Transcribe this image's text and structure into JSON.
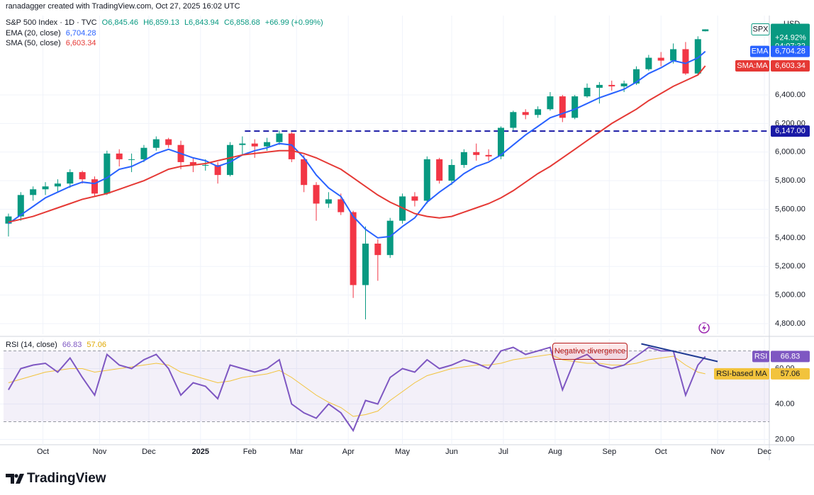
{
  "header": {
    "credit": "ranadagger created with TradingView.com, Oct 27, 2025 16:02 UTC"
  },
  "chart_data": [
    {
      "type": "candlestick",
      "title": "S&P 500 Index · 1D · TVC",
      "ohlc_labels": [
        "O6,845.46",
        "H6,859.13",
        "L6,843.94",
        "C6,858.68",
        "+66.99 (+0.99%)"
      ],
      "currency": "USD",
      "symbol": "SPX",
      "change_label": "+24.92%",
      "countdown": "04:07:32",
      "up_color": "#089981",
      "down_color": "#f23645",
      "x": [
        1,
        6,
        11,
        16,
        21,
        26,
        31,
        36,
        41,
        46,
        51,
        56,
        61,
        66,
        71,
        76,
        81,
        86,
        91,
        96,
        101,
        106,
        111,
        116,
        121,
        126,
        131,
        136,
        141,
        146,
        151,
        156,
        161,
        166,
        171,
        176,
        181,
        186,
        191,
        196,
        201,
        206,
        211,
        216,
        221,
        226,
        231,
        236,
        241,
        246,
        251,
        256,
        261,
        266,
        271,
        276,
        281,
        284
      ],
      "open": [
        5500,
        5550,
        5700,
        5740,
        5760,
        5780,
        5860,
        5810,
        5710,
        5990,
        5950,
        5950,
        6030,
        6090,
        6050,
        5930,
        5910,
        5910,
        5840,
        6050,
        6060,
        6040,
        6070,
        6130,
        5950,
        5770,
        5640,
        5670,
        5580,
        5070,
        5360,
        5280,
        5520,
        5690,
        5660,
        5950,
        5800,
        5910,
        6000,
        5980,
        5970,
        6170,
        6280,
        6260,
        6300,
        6390,
        6240,
        6390,
        6450,
        6470,
        6460,
        6480,
        6580,
        6660,
        6640,
        6720,
        6550,
        6845.46
      ],
      "high": [
        5570,
        5720,
        5760,
        5790,
        5810,
        5880,
        5870,
        5830,
        6010,
        6020,
        5990,
        6050,
        6110,
        6100,
        6080,
        5960,
        5950,
        5930,
        6070,
        6110,
        6090,
        6100,
        6150,
        6140,
        5980,
        5790,
        5720,
        5710,
        5590,
        5480,
        5390,
        5540,
        5710,
        5720,
        5970,
        5960,
        5950,
        6020,
        6060,
        6020,
        6180,
        6290,
        6300,
        6320,
        6420,
        6400,
        6400,
        6480,
        6490,
        6500,
        6500,
        6600,
        6680,
        6700,
        6760,
        6770,
        6810,
        6859.13
      ],
      "low": [
        5410,
        5520,
        5660,
        5700,
        5720,
        5750,
        5780,
        5690,
        5700,
        5900,
        5860,
        5930,
        6010,
        6030,
        5880,
        5860,
        5870,
        5780,
        5830,
        5980,
        5960,
        6010,
        6050,
        5930,
        5720,
        5520,
        5610,
        5560,
        4980,
        4830,
        5100,
        5260,
        5500,
        5620,
        5640,
        5780,
        5770,
        5890,
        5940,
        5940,
        5950,
        6150,
        6230,
        6240,
        6290,
        6210,
        6230,
        6380,
        6340,
        6430,
        6420,
        6470,
        6570,
        6600,
        6620,
        6540,
        6540,
        6843.94
      ],
      "close": [
        5550,
        5700,
        5740,
        5760,
        5780,
        5860,
        5810,
        5710,
        5990,
        5950,
        5950,
        6030,
        6090,
        6050,
        5930,
        5910,
        5910,
        5840,
        6050,
        6060,
        6040,
        6070,
        6130,
        5950,
        5770,
        5640,
        5670,
        5580,
        5070,
        5360,
        5280,
        5520,
        5690,
        5660,
        5950,
        5800,
        5910,
        6000,
        5980,
        5970,
        6170,
        6280,
        6260,
        6300,
        6390,
        6240,
        6390,
        6450,
        6470,
        6460,
        6480,
        6580,
        6660,
        6640,
        6720,
        6550,
        6790,
        6858.68
      ],
      "series": [
        {
          "name": "EMA (20, close)",
          "badge": "EMA",
          "legend_value": "6,704.28",
          "color": "#2962ff",
          "values": [
            5500,
            5560,
            5620,
            5680,
            5720,
            5760,
            5790,
            5780,
            5820,
            5880,
            5900,
            5940,
            5990,
            6020,
            5990,
            5960,
            5940,
            5900,
            5930,
            5980,
            6010,
            6030,
            6060,
            6050,
            5960,
            5840,
            5750,
            5690,
            5550,
            5460,
            5400,
            5410,
            5480,
            5540,
            5650,
            5720,
            5780,
            5850,
            5900,
            5930,
            5980,
            6050,
            6120,
            6180,
            6240,
            6270,
            6300,
            6340,
            6380,
            6410,
            6440,
            6490,
            6550,
            6590,
            6640,
            6620,
            6660,
            6704.28
          ]
        },
        {
          "name": "SMA (50, close)",
          "badge": "SMA:MA",
          "legend_value": "6,603.34",
          "color": "#e53935",
          "values": [
            5510,
            5530,
            5550,
            5580,
            5610,
            5640,
            5670,
            5690,
            5710,
            5740,
            5770,
            5800,
            5840,
            5880,
            5900,
            5910,
            5920,
            5940,
            5960,
            5980,
            5990,
            6000,
            6010,
            6010,
            5990,
            5960,
            5920,
            5880,
            5820,
            5760,
            5700,
            5650,
            5610,
            5570,
            5550,
            5540,
            5550,
            5580,
            5610,
            5640,
            5680,
            5730,
            5790,
            5850,
            5900,
            5960,
            6020,
            6080,
            6140,
            6200,
            6250,
            6300,
            6360,
            6410,
            6460,
            6500,
            6540,
            6603.34
          ]
        }
      ],
      "hline": {
        "value": 6147,
        "label": "6,147.00",
        "x_start": 97,
        "color": "#1a1aa6"
      },
      "xlim": [
        -1,
        310
      ],
      "xticks": [
        {
          "value": 15,
          "label": "Oct"
        },
        {
          "value": 38,
          "label": "Nov"
        },
        {
          "value": 58,
          "label": "Dec"
        },
        {
          "value": 79,
          "label": "2025"
        },
        {
          "value": 99,
          "label": "Feb"
        },
        {
          "value": 118,
          "label": "Mar"
        },
        {
          "value": 139,
          "label": "Apr"
        },
        {
          "value": 161,
          "label": "May"
        },
        {
          "value": 181,
          "label": "Jun"
        },
        {
          "value": 202,
          "label": "Jul"
        },
        {
          "value": 223,
          "label": "Aug"
        },
        {
          "value": 245,
          "label": "Sep"
        },
        {
          "value": 266,
          "label": "Oct"
        },
        {
          "value": 289,
          "label": "Nov"
        },
        {
          "value": 308,
          "label": "Dec"
        }
      ],
      "ylim": [
        4726,
        6955
      ],
      "yticks": [
        {
          "value": 4800,
          "label": "4,800.00"
        },
        {
          "value": 5000,
          "label": "5,000.00"
        },
        {
          "value": 5200,
          "label": "5,200.00"
        },
        {
          "value": 5400,
          "label": "5,400.00"
        },
        {
          "value": 5600,
          "label": "5,600.00"
        },
        {
          "value": 5800,
          "label": "5,800.00"
        },
        {
          "value": 6000,
          "label": "6,000.00"
        },
        {
          "value": 6200,
          "label": "6,200.00"
        },
        {
          "value": 6400,
          "label": "6,400.00"
        }
      ],
      "grid": true
    },
    {
      "type": "line",
      "title": "RSI (14, close)",
      "series": [
        {
          "name": "RSI (14, close)",
          "badge": "RSI",
          "legend_value": "66.83",
          "color": "#7e57c2",
          "values": [
            48,
            60,
            62,
            63,
            58,
            66,
            55,
            45,
            68,
            62,
            60,
            65,
            68,
            60,
            45,
            52,
            50,
            43,
            62,
            60,
            58,
            60,
            65,
            40,
            35,
            32,
            40,
            35,
            25,
            42,
            40,
            55,
            60,
            58,
            65,
            60,
            62,
            65,
            63,
            60,
            70,
            72,
            68,
            70,
            72,
            48,
            65,
            68,
            62,
            60,
            62,
            67,
            72,
            70,
            70,
            45,
            62,
            66.83
          ]
        },
        {
          "name": "RSI-based MA",
          "badge": "RSI-based MA",
          "legend_value": "57.06",
          "color": "#f2c33c",
          "values": [
            52,
            54,
            56,
            58,
            59,
            60,
            60,
            58,
            59,
            60,
            61,
            62,
            63,
            62,
            58,
            56,
            54,
            52,
            53,
            55,
            56,
            57,
            59,
            55,
            50,
            45,
            41,
            38,
            33,
            34,
            36,
            42,
            47,
            52,
            56,
            58,
            60,
            61,
            62,
            62,
            63,
            65,
            66,
            67,
            68,
            65,
            64,
            63,
            63,
            62,
            62,
            63,
            65,
            66,
            67,
            62,
            58,
            57.06
          ]
        }
      ],
      "levels": [
        70,
        30
      ],
      "annotation": {
        "text": "Negative divergence",
        "x": [
          258,
          289
        ],
        "values": [
          74,
          64
        ],
        "color": "#1f3a93"
      },
      "ylim": [
        17,
        77
      ],
      "yticks": [
        {
          "value": 20,
          "label": "20.00"
        },
        {
          "value": 40,
          "label": "40.00"
        },
        {
          "value": 60,
          "label": "60.00"
        }
      ],
      "grid": true
    }
  ],
  "footer": {
    "brand": "TradingView"
  }
}
